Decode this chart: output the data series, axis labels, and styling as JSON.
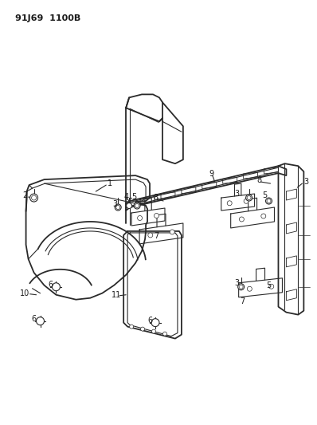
{
  "title": "91J69  1100B",
  "bg_color": "#ffffff",
  "line_color": "#2a2a2a",
  "label_color": "#1a1a1a",
  "title_fontsize": 8.0,
  "label_fontsize": 7.0,
  "fig_width": 3.98,
  "fig_height": 5.33,
  "dpi": 100
}
